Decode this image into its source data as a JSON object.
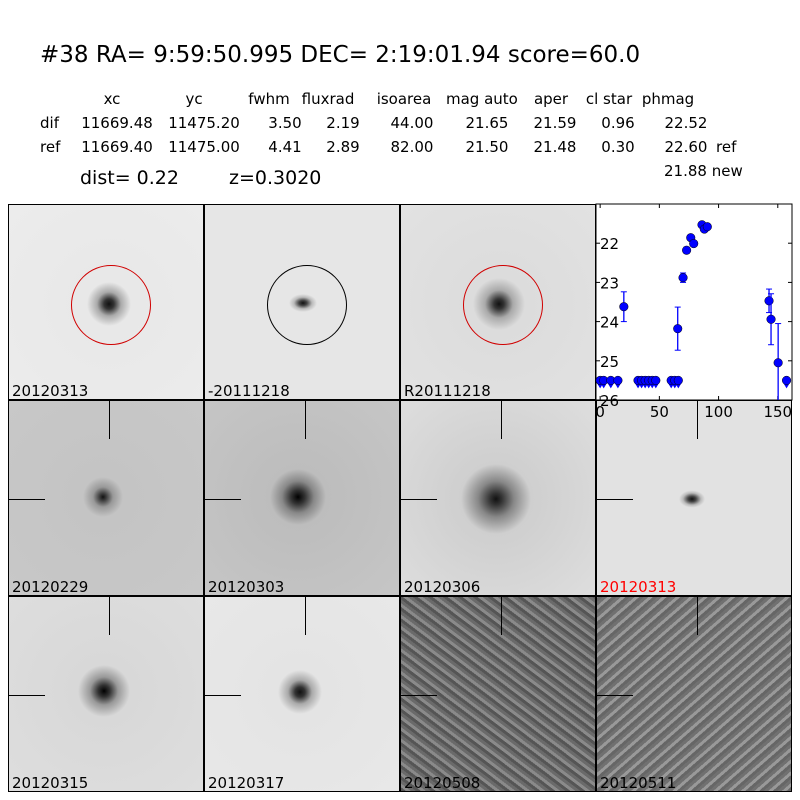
{
  "title": "#38   RA= 9:59:50.995 DEC= 2:19:01.94      score=60.0",
  "table": {
    "headers": [
      "xc",
      "yc",
      "fwhm",
      "fluxrad",
      "isoarea",
      "mag auto",
      "aper",
      "cl star",
      "phmag"
    ],
    "rows": [
      {
        "label": "dif",
        "values": [
          "11669.48",
          "11475.20",
          "3.50",
          "2.19",
          "44.00",
          "21.65",
          "21.59",
          "0.96",
          "22.52"
        ],
        "note": ""
      },
      {
        "label": "ref",
        "values": [
          "11669.40",
          "11475.00",
          "4.41",
          "2.89",
          "82.00",
          "21.50",
          "21.48",
          "0.30",
          "22.60"
        ],
        "note": "ref"
      }
    ],
    "new_phmag": "21.88 new"
  },
  "dist": "dist=  0.22",
  "z": "z=0.3020",
  "stamps": [
    {
      "label": "20120313",
      "circle": "#d00000"
    },
    {
      "label": "-20111218",
      "circle": "#000000"
    },
    {
      "label": "R20111218",
      "circle": "#d00000"
    },
    {
      "label": "20120229",
      "color": "#000000"
    },
    {
      "label": "20120303",
      "color": "#000000"
    },
    {
      "label": "20120306",
      "color": "#000000"
    },
    {
      "label": "20120313",
      "color": "#ff0000"
    },
    {
      "label": "20120315",
      "color": "#000000"
    },
    {
      "label": "20120317",
      "color": "#000000"
    },
    {
      "label": "20120508",
      "color": "#000000"
    },
    {
      "label": "20120511",
      "color": "#000000"
    }
  ],
  "chart_data": {
    "type": "scatter",
    "xlim": [
      -3.5,
      162
    ],
    "ylim": [
      26,
      21
    ],
    "y_inverted": true,
    "xticks": [
      0,
      50,
      100,
      150
    ],
    "yticks": [
      22,
      23,
      24,
      25,
      26
    ],
    "color": "#0000ff",
    "detections": [
      {
        "x": 20,
        "y": 23.62,
        "err": 0.38
      },
      {
        "x": 65.5,
        "y": 24.18,
        "err": 0.55
      },
      {
        "x": 70,
        "y": 22.88,
        "err": 0.12
      },
      {
        "x": 73,
        "y": 22.18,
        "err": 0.08
      },
      {
        "x": 76.5,
        "y": 21.86,
        "err": 0.07
      },
      {
        "x": 79,
        "y": 22.01,
        "err": 0.07
      },
      {
        "x": 86,
        "y": 21.53,
        "err": 0.04
      },
      {
        "x": 88,
        "y": 21.64,
        "err": 0.04
      },
      {
        "x": 90.5,
        "y": 21.58,
        "err": 0.04
      },
      {
        "x": 142.6,
        "y": 23.47,
        "err": 0.3
      },
      {
        "x": 144.3,
        "y": 23.94,
        "err": 0.65
      },
      {
        "x": 150.3,
        "y": 25.05,
        "err": 1.0
      }
    ],
    "upper_limits": [
      {
        "x": 0,
        "y": 25.5
      },
      {
        "x": 3,
        "y": 25.5
      },
      {
        "x": 9,
        "y": 25.5
      },
      {
        "x": 15,
        "y": 25.5
      },
      {
        "x": 32,
        "y": 25.5
      },
      {
        "x": 35,
        "y": 25.5
      },
      {
        "x": 38,
        "y": 25.5
      },
      {
        "x": 41,
        "y": 25.5
      },
      {
        "x": 44,
        "y": 25.5
      },
      {
        "x": 47,
        "y": 25.5
      },
      {
        "x": 60,
        "y": 25.5
      },
      {
        "x": 63,
        "y": 25.5
      },
      {
        "x": 66,
        "y": 25.5
      },
      {
        "x": 157.4,
        "y": 25.5
      }
    ]
  }
}
